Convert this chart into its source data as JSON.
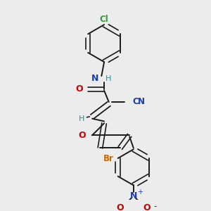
{
  "background_color": "#ececec",
  "bond_color": "#1a1a1a",
  "atom_colors": {
    "Cl": "#2ea02e",
    "N": "#1a3db5",
    "O": "#cc0000",
    "CN_C": "#1a3db5",
    "H": "#2a9090",
    "Br": "#cc6600",
    "N_nitro": "#1a3db5",
    "O_nitro": "#cc0000"
  },
  "figsize": [
    3.0,
    3.0
  ],
  "dpi": 100
}
